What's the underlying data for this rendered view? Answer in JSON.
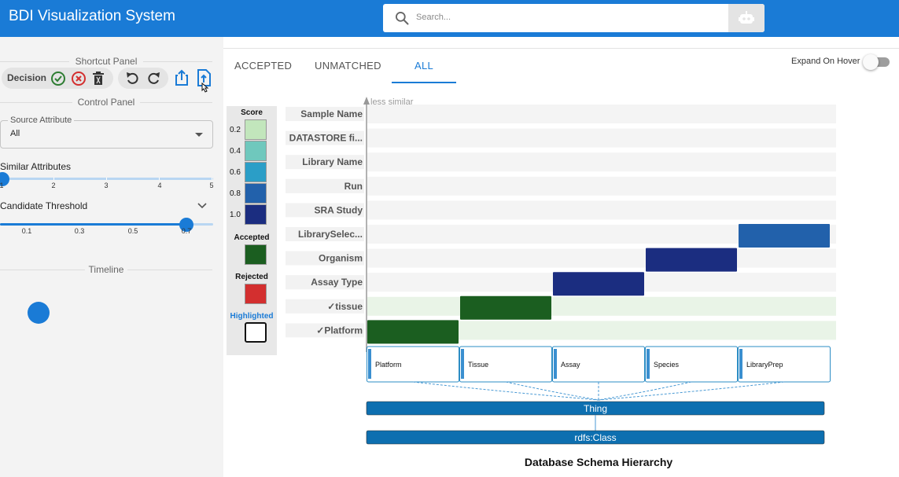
{
  "header": {
    "title": "BDI Visualization System",
    "search_placeholder": "Search...",
    "icons": {
      "search": "search-icon",
      "assistant": "robot-icon"
    }
  },
  "shortcut_panel": {
    "title": "Shortcut Panel",
    "decision_label": "Decision",
    "icons": [
      "check-circle-icon",
      "x-circle-icon",
      "trash-icon",
      "undo-icon",
      "redo-icon",
      "share-icon",
      "export-file-icon"
    ]
  },
  "control_panel": {
    "title": "Control Panel",
    "source_attribute": {
      "label": "Source Attribute",
      "value": "All"
    },
    "similar_attributes": {
      "label": "Similar Attributes",
      "ticks": [
        "1",
        "2",
        "3",
        "4",
        "5"
      ],
      "value": 1
    },
    "candidate_threshold": {
      "label": "Candidate Threshold",
      "ticks": [
        "0.1",
        "0.3",
        "0.5",
        "0.7"
      ],
      "value": 0.7
    }
  },
  "timeline": {
    "title": "Timeline"
  },
  "tabs": [
    "ACCEPTED",
    "UNMATCHED",
    "ALL"
  ],
  "active_tab": "ALL",
  "expand_on_hover": {
    "label": "Expand On Hover",
    "enabled": false
  },
  "legend": {
    "score_title": "Score",
    "score_levels": [
      {
        "label": "0.2",
        "color": "#c2e6bc"
      },
      {
        "label": "0.4",
        "color": "#6fc8bd"
      },
      {
        "label": "0.6",
        "color": "#2b9ec7"
      },
      {
        "label": "0.8",
        "color": "#2261ab"
      },
      {
        "label": "1.0",
        "color": "#1b2d80"
      }
    ],
    "accepted_title": "Accepted",
    "accepted_color": "#1b5e20",
    "rejected_title": "Rejected",
    "rejected_color": "#d32f2f",
    "highlighted_title": "Highlighted",
    "highlighted_color": "#1a7bd6"
  },
  "chart_data": {
    "type": "heatmap",
    "axis_label": "less similar",
    "rows": [
      {
        "label": "Sample Name",
        "accepted": false
      },
      {
        "label": "DATASTORE fi...",
        "accepted": false
      },
      {
        "label": "Library Name",
        "accepted": false
      },
      {
        "label": "Run",
        "accepted": false
      },
      {
        "label": "SRA Study",
        "accepted": false
      },
      {
        "label": "LibrarySelec...",
        "accepted": false
      },
      {
        "label": "Organism",
        "accepted": false
      },
      {
        "label": "Assay Type",
        "accepted": false
      },
      {
        "label": "tissue",
        "accepted": true
      },
      {
        "label": "Platform",
        "accepted": true
      }
    ],
    "columns": [
      "Platform",
      "Tissue",
      "Assay",
      "Species",
      "LibraryPrep"
    ],
    "cells": [
      {
        "row": "LibrarySelec...",
        "column": "LibraryPrep",
        "score": 0.8,
        "status": "candidate"
      },
      {
        "row": "Organism",
        "column": "Species",
        "score": 1.0,
        "status": "candidate"
      },
      {
        "row": "Assay Type",
        "column": "Assay",
        "score": 1.0,
        "status": "candidate"
      },
      {
        "row": "tissue",
        "column": "Tissue",
        "score": 1.0,
        "status": "accepted"
      },
      {
        "row": "Platform",
        "column": "Platform",
        "score": 1.0,
        "status": "accepted"
      }
    ],
    "hierarchy": {
      "level1": "Thing",
      "level2": "rdfs:Class"
    },
    "title": "Database Schema Hierarchy"
  }
}
